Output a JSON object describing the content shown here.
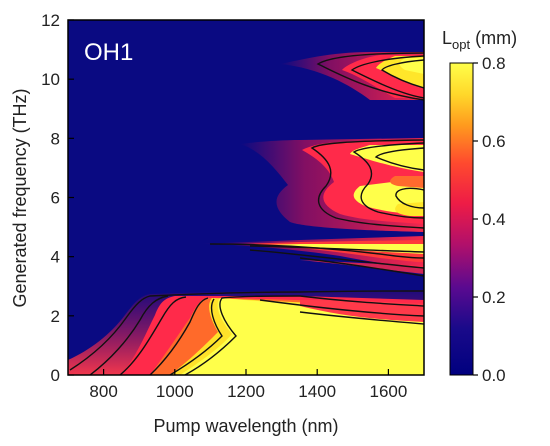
{
  "chart_data": {
    "type": "heatmap",
    "annotation": "OH1",
    "xlabel": "Pump wavelength (nm)",
    "ylabel": "Generated frequency (THz)",
    "xlim": [
      700,
      1700
    ],
    "ylim": [
      0,
      12
    ],
    "x_ticks": [
      800,
      1000,
      1200,
      1400,
      1600
    ],
    "y_ticks": [
      0,
      2,
      4,
      6,
      8,
      10,
      12
    ],
    "colorbar": {
      "label_main": "L",
      "label_sub": "opt",
      "label_unit": " (mm)",
      "range": [
        0.0,
        0.8
      ],
      "ticks": [
        "0.0",
        "0.2",
        "0.4",
        "0.6",
        "0.8"
      ],
      "colormap": [
        "#00007f",
        "#2a0a8f",
        "#7d0a8f",
        "#d2124e",
        "#ff3b2a",
        "#ff8a1e",
        "#ffd21e",
        "#ffff4a"
      ]
    },
    "regions": [
      {
        "name": "low-frequency band",
        "x_range": [
          700,
          1700
        ],
        "y_range": [
          0,
          2.7
        ],
        "peak_value": 0.8
      },
      {
        "name": "band near 4.2 THz",
        "x_range": [
          1150,
          1700
        ],
        "y_range": [
          3.3,
          4.6
        ],
        "peak_value": 0.8
      },
      {
        "name": "band 5-8 THz",
        "x_range": [
          1340,
          1700
        ],
        "y_range": [
          4.8,
          8.2
        ],
        "peak_value": 0.8
      },
      {
        "name": "band near 10.5 THz",
        "x_range": [
          1430,
          1700
        ],
        "y_range": [
          9.5,
          10.9
        ],
        "peak_value": 0.8
      }
    ]
  }
}
